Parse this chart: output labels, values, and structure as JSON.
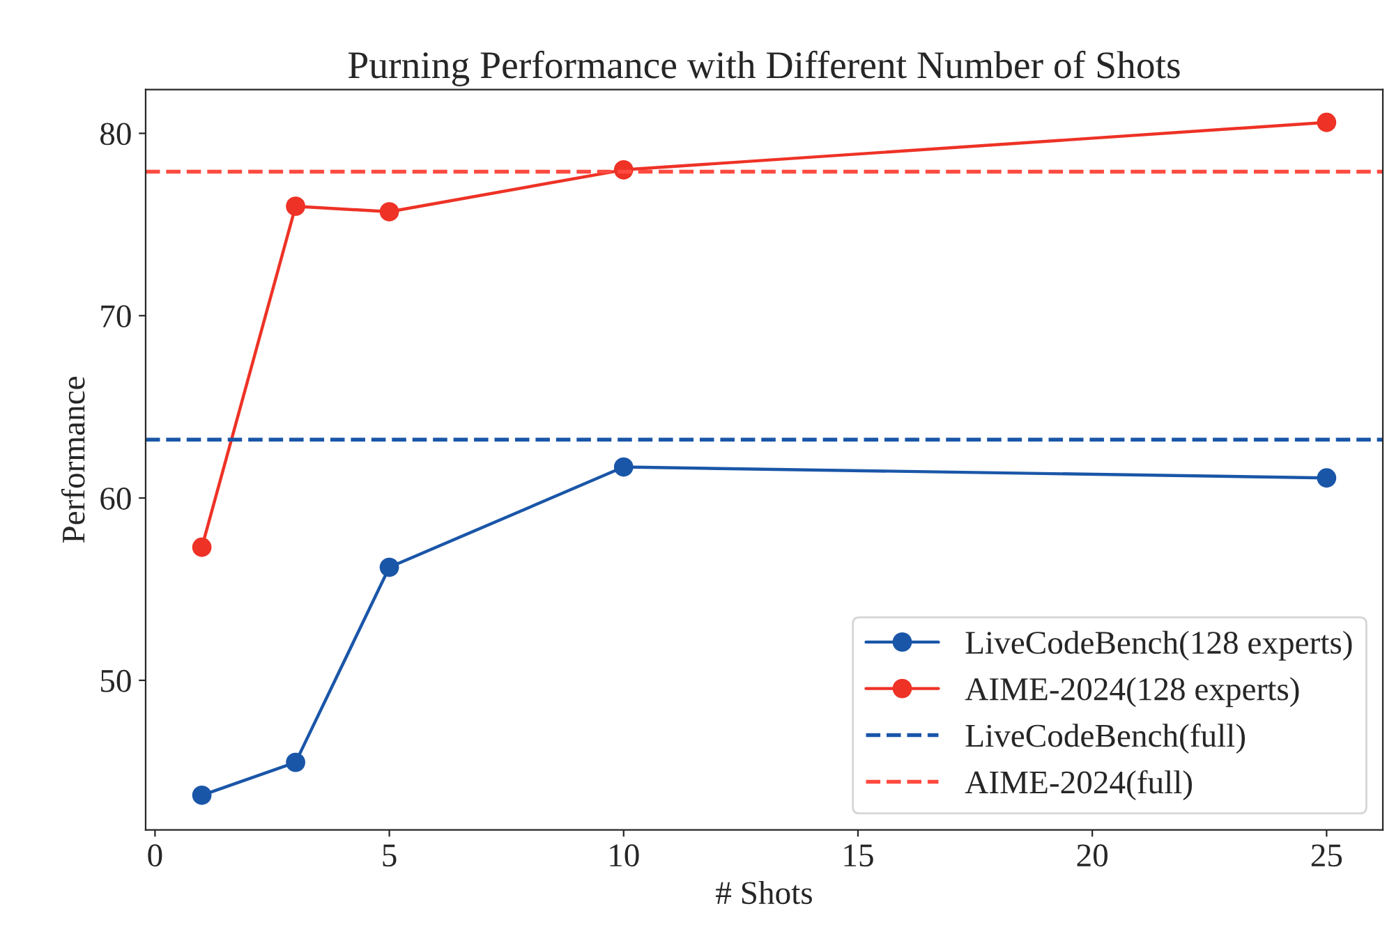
{
  "chart_data": {
    "type": "line",
    "title": "Purning Performance with Different Number of Shots",
    "xlabel": "# Shots",
    "ylabel": "Performance",
    "x": [
      1,
      3,
      5,
      10,
      25
    ],
    "series": [
      {
        "name": "LiveCodeBench(128 experts)",
        "color": "#1a56a8",
        "values": [
          43.7,
          45.5,
          56.2,
          61.7,
          61.1
        ]
      },
      {
        "name": "AIME-2024(128 experts)",
        "color": "#ee3226",
        "values": [
          57.3,
          76.0,
          75.7,
          78.0,
          80.6
        ]
      }
    ],
    "ref_lines": [
      {
        "axis": "y",
        "value": 63.2,
        "label": "LiveCodeBench(full)",
        "color": "#1a56a8",
        "line_style": "dashed"
      },
      {
        "axis": "y",
        "value": 77.9,
        "label": "AIME-2024(full)",
        "color": "#ff4a40",
        "line_style": "dashed"
      }
    ],
    "xlim": [
      -0.2,
      26.2
    ],
    "xticks": [
      0,
      5,
      10,
      15,
      20,
      25
    ],
    "ylim": [
      41.8,
      82.4
    ],
    "yticks": [
      50,
      60,
      70,
      80
    ],
    "marker": "circle",
    "line_style": "solid",
    "legend": "bottom right"
  }
}
